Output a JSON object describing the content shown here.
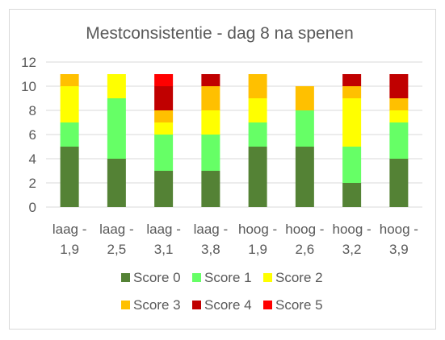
{
  "chart_data": {
    "type": "bar",
    "stacked": true,
    "title": "Mestconsistentie - dag 8 na spenen",
    "xlabel": "",
    "ylabel": "",
    "ylim": [
      0,
      12
    ],
    "yticks": [
      0,
      2,
      4,
      6,
      8,
      10,
      12
    ],
    "grid": true,
    "legend_position": "bottom",
    "categories": [
      [
        "laag -",
        "1,9"
      ],
      [
        "laag -",
        "2,5"
      ],
      [
        "laag -",
        "3,1"
      ],
      [
        "laag -",
        "3,8"
      ],
      [
        "hoog -",
        "1,9"
      ],
      [
        "hoog -",
        "2,6"
      ],
      [
        "hoog -",
        "3,2"
      ],
      [
        "hoog -",
        "3,9"
      ]
    ],
    "series": [
      {
        "name": "Score 0",
        "color": "#548235",
        "values": [
          5,
          4,
          3,
          3,
          5,
          5,
          2,
          4
        ]
      },
      {
        "name": "Score 1",
        "color": "#66FF66",
        "values": [
          2,
          5,
          3,
          3,
          2,
          3,
          3,
          3
        ]
      },
      {
        "name": "Score 2",
        "color": "#FFFF00",
        "values": [
          3,
          2,
          1,
          2,
          2,
          0,
          4,
          1
        ]
      },
      {
        "name": "Score 3",
        "color": "#FFC000",
        "values": [
          1,
          0,
          1,
          2,
          2,
          2,
          1,
          1
        ]
      },
      {
        "name": "Score 4",
        "color": "#C00000",
        "values": [
          0,
          0,
          2,
          1,
          0,
          0,
          1,
          2
        ]
      },
      {
        "name": "Score 5",
        "color": "#FF0000",
        "values": [
          0,
          0,
          1,
          0,
          0,
          0,
          0,
          0
        ]
      }
    ]
  }
}
